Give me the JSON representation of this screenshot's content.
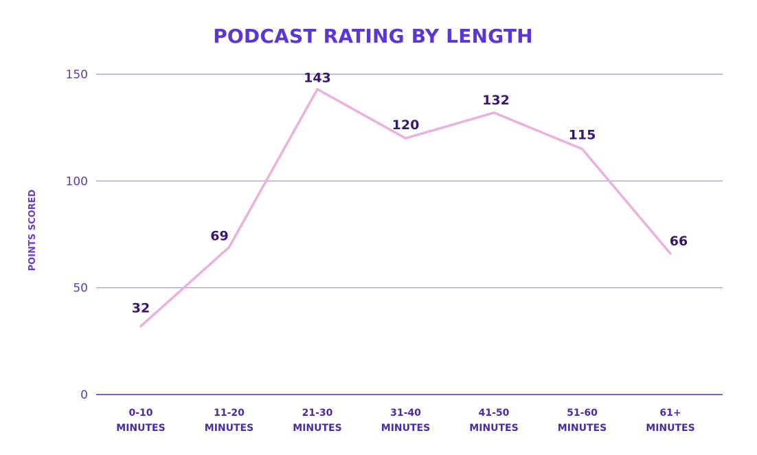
{
  "colors": {
    "title": "#5b35d6",
    "line": "#eab0e0",
    "grid": "#9b8fd8",
    "axis": "#7a62d0"
  },
  "chart_data": {
    "type": "line",
    "title": "PODCAST RATING BY LENGTH",
    "xlabel": "",
    "ylabel": "POINTS SCORED",
    "categories": [
      [
        "0-10",
        "MINUTES"
      ],
      [
        "11-20",
        "MINUTES"
      ],
      [
        "21-30",
        "MINUTES"
      ],
      [
        "31-40",
        "MINUTES"
      ],
      [
        "41-50",
        "MINUTES"
      ],
      [
        "51-60",
        "MINUTES"
      ],
      [
        "61+",
        "MINUTES"
      ]
    ],
    "values": [
      32,
      69,
      143,
      120,
      132,
      115,
      66
    ],
    "data_labels": [
      "32",
      "69",
      "143",
      "120",
      "132",
      "115",
      "66"
    ],
    "ylim": [
      0,
      150
    ],
    "yticks": [
      0,
      50,
      100,
      150
    ],
    "grid": true,
    "legend": "none"
  }
}
